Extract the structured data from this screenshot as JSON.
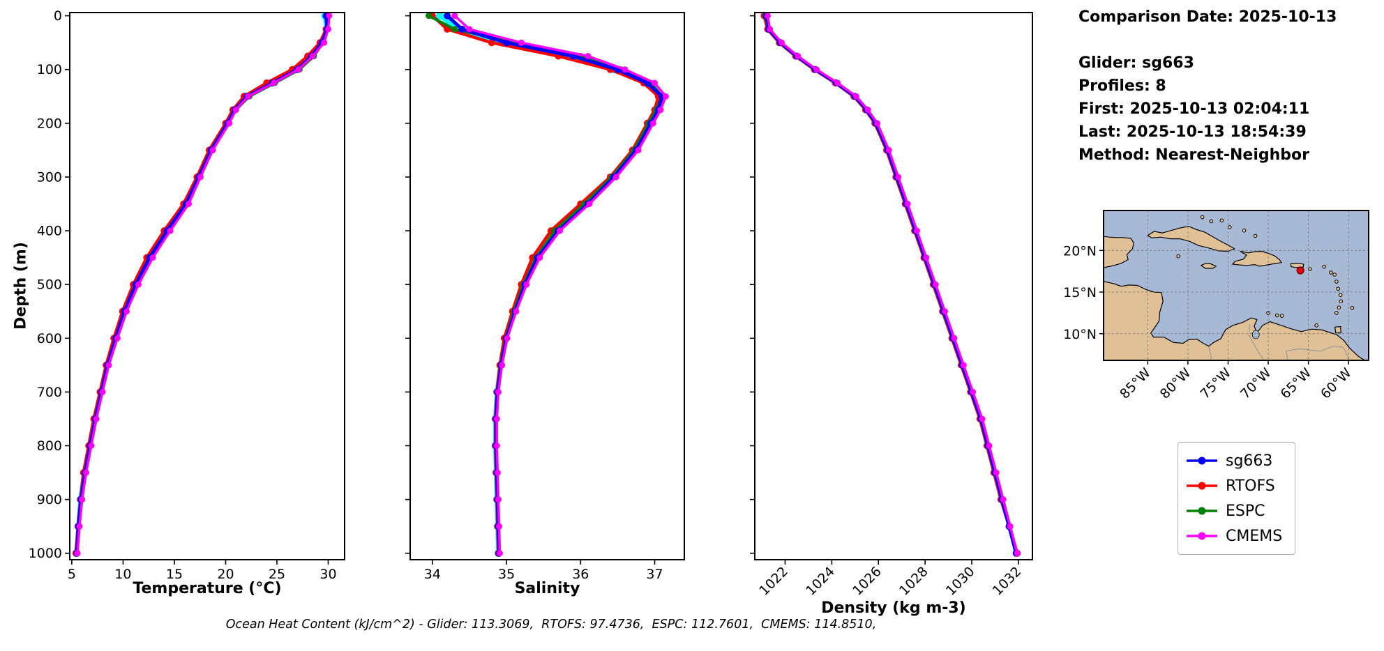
{
  "depth_axis_label": "Depth (m)",
  "info": {
    "title": "Comparison Date: 2025-10-13",
    "lines": [
      "Glider: sg663",
      "Profiles: 8",
      "First: 2025-10-13 02:04:11",
      "Last: 2025-10-13 18:54:39",
      "Method: Nearest-Neighbor"
    ]
  },
  "caption": "Ocean Heat Content (kJ/cm^2) - Glider: 113.3069,  RTOFS: 97.4736,  ESPC: 112.7601,  CMEMS: 114.8510,",
  "ocean_heat_content": {
    "glider": 113.3069,
    "rtofs": 97.4736,
    "espc": 112.7601,
    "cmems": 114.851
  },
  "legend": {
    "position": "lower-right",
    "entries": [
      {
        "label": "sg663",
        "color": "#0000ff"
      },
      {
        "label": "RTOFS",
        "color": "#ff0000"
      },
      {
        "label": "ESPC",
        "color": "#008000"
      },
      {
        "label": "CMEMS",
        "color": "#ff00ff"
      }
    ]
  },
  "map": {
    "ocean_color": "#a7b9d5",
    "land_color": "#e0c096",
    "marker": {
      "lon": -66.0,
      "lat": 17.6,
      "color": "#e8000b"
    },
    "lat_ticks": [
      "20°N",
      "15°N",
      "10°N"
    ],
    "lat_tick_values": [
      20,
      15,
      10
    ],
    "lon_ticks": [
      "85°W",
      "80°W",
      "75°W",
      "70°W",
      "65°W",
      "60°W"
    ],
    "lon_tick_values": [
      -85,
      -80,
      -75,
      -70,
      -65,
      -60
    ]
  },
  "chart_data": [
    {
      "name": "temperature",
      "type": "line",
      "xlabel": "Temperature (°C)",
      "ylabel": "Depth (m)",
      "xlim": [
        4.8,
        31.6
      ],
      "ylim": [
        0,
        1000
      ],
      "y_inverted": true,
      "grid": false,
      "xticks": [
        5,
        10,
        15,
        20,
        25,
        30
      ],
      "yticks": [
        0,
        100,
        200,
        300,
        400,
        500,
        600,
        700,
        800,
        900,
        1000
      ],
      "xtick_rotation": 0,
      "show_ytick_labels": true,
      "depths": [
        0,
        25,
        50,
        75,
        100,
        125,
        150,
        175,
        200,
        250,
        300,
        350,
        400,
        450,
        500,
        550,
        600,
        650,
        700,
        750,
        800,
        850,
        900,
        950,
        1000
      ],
      "series": [
        {
          "name": "profiles",
          "color": "#00ffff",
          "lw": 6.5,
          "ms": 5.5,
          "values": [
            29.7,
            29.85,
            29.3,
            28.2,
            26.8,
            24.4,
            21.9,
            20.8,
            20.1,
            18.5,
            17.3,
            16.0,
            14.1,
            12.4,
            11.1,
            10.0,
            9.2,
            8.4,
            7.8,
            7.2,
            6.7,
            6.2,
            5.85,
            5.65,
            5.45
          ]
        },
        {
          "name": "RTOFS",
          "color": "#ff0000",
          "lw": 4.5,
          "ms": 5,
          "values": [
            30.0,
            29.8,
            29.2,
            28.0,
            26.5,
            24.0,
            21.8,
            20.7,
            20.0,
            18.4,
            17.2,
            15.9,
            14.0,
            12.3,
            11.0,
            9.95,
            9.1,
            8.35,
            7.75,
            7.15,
            6.65,
            6.15,
            5.85,
            5.6,
            5.4
          ]
        },
        {
          "name": "ESPC",
          "color": "#008000",
          "lw": 4,
          "ms": 4.5,
          "values": [
            29.9,
            29.9,
            29.5,
            28.6,
            27.2,
            24.8,
            22.3,
            21.0,
            20.3,
            18.7,
            17.5,
            16.3,
            14.5,
            12.75,
            11.4,
            10.3,
            9.4,
            8.6,
            7.95,
            7.35,
            6.85,
            6.35,
            6.0,
            5.7,
            5.5
          ]
        },
        {
          "name": "sg663",
          "color": "#0000ff",
          "lw": 5,
          "ms": 5,
          "values": [
            29.8,
            29.9,
            29.4,
            28.4,
            27.0,
            24.6,
            22.1,
            20.9,
            20.2,
            18.6,
            17.4,
            16.15,
            14.3,
            12.6,
            11.25,
            10.15,
            9.3,
            8.5,
            7.9,
            7.3,
            6.8,
            6.3,
            5.9,
            5.65,
            5.5
          ]
        },
        {
          "name": "CMEMS",
          "color": "#ff00ff",
          "lw": 3.5,
          "ms": 4.5,
          "values": [
            30.1,
            30.0,
            29.6,
            28.5,
            27.1,
            24.7,
            22.2,
            21.0,
            20.35,
            18.75,
            17.55,
            16.4,
            14.6,
            12.9,
            11.5,
            10.35,
            9.45,
            8.6,
            8.0,
            7.4,
            6.9,
            6.4,
            6.0,
            5.75,
            5.55
          ]
        }
      ]
    },
    {
      "name": "salinity",
      "type": "line",
      "xlabel": "Salinity",
      "ylabel": "Depth (m)",
      "xlim": [
        33.7,
        37.4
      ],
      "ylim": [
        0,
        1000
      ],
      "y_inverted": true,
      "grid": false,
      "xticks": [
        34,
        35,
        36,
        37
      ],
      "yticks": [
        0,
        100,
        200,
        300,
        400,
        500,
        600,
        700,
        800,
        900,
        1000
      ],
      "xtick_rotation": 0,
      "show_ytick_labels": false,
      "depths": [
        0,
        25,
        50,
        75,
        100,
        125,
        150,
        175,
        200,
        250,
        300,
        350,
        400,
        450,
        500,
        550,
        600,
        650,
        700,
        750,
        800,
        850,
        900,
        950,
        1000
      ],
      "series": [
        {
          "name": "profiles",
          "color": "#00ffff",
          "lw": 6.5,
          "ms": 5.5,
          "values": [
            34.1,
            34.35,
            34.95,
            35.85,
            36.45,
            36.88,
            37.08,
            37.03,
            36.93,
            36.73,
            36.43,
            36.08,
            35.68,
            35.4,
            35.24,
            35.11,
            34.99,
            34.92,
            34.87,
            34.85,
            34.85,
            34.86,
            34.87,
            34.88,
            34.89
          ]
        },
        {
          "name": "RTOFS",
          "color": "#ff0000",
          "lw": 4.5,
          "ms": 5,
          "values": [
            34.0,
            34.2,
            34.8,
            35.7,
            36.4,
            36.85,
            37.05,
            37.0,
            36.9,
            36.7,
            36.4,
            36.0,
            35.6,
            35.35,
            35.2,
            35.08,
            34.97,
            34.91,
            34.87,
            34.85,
            34.85,
            34.86,
            34.87,
            34.88,
            34.89
          ]
        },
        {
          "name": "ESPC",
          "color": "#008000",
          "lw": 4,
          "ms": 4.5,
          "values": [
            33.95,
            34.3,
            35.1,
            36.0,
            36.55,
            36.95,
            37.1,
            37.02,
            36.92,
            36.72,
            36.42,
            36.05,
            35.65,
            35.4,
            35.23,
            35.1,
            34.99,
            34.92,
            34.88,
            34.86,
            34.86,
            34.87,
            34.88,
            34.89,
            34.9
          ]
        },
        {
          "name": "sg663",
          "color": "#0000ff",
          "lw": 5,
          "ms": 5,
          "values": [
            34.2,
            34.4,
            35.0,
            35.9,
            36.5,
            36.9,
            37.1,
            37.05,
            36.95,
            36.75,
            36.45,
            36.1,
            35.7,
            35.42,
            35.25,
            35.12,
            35.0,
            34.93,
            34.88,
            34.86,
            34.86,
            34.87,
            34.88,
            34.89,
            34.9
          ]
        },
        {
          "name": "CMEMS",
          "color": "#ff00ff",
          "lw": 3.5,
          "ms": 4.5,
          "values": [
            34.3,
            34.5,
            35.2,
            36.1,
            36.6,
            37.0,
            37.15,
            37.08,
            36.98,
            36.78,
            36.48,
            36.12,
            35.72,
            35.45,
            35.27,
            35.13,
            35.01,
            34.94,
            34.89,
            34.87,
            34.87,
            34.88,
            34.89,
            34.9,
            34.91
          ]
        }
      ]
    },
    {
      "name": "density",
      "type": "line",
      "xlabel": "Density (kg m-3)",
      "ylabel": "Depth (m)",
      "xlim": [
        1020.7,
        1032.6
      ],
      "ylim": [
        0,
        1000
      ],
      "y_inverted": true,
      "grid": false,
      "xticks": [
        1022,
        1024,
        1026,
        1028,
        1030,
        1032
      ],
      "yticks": [
        0,
        100,
        200,
        300,
        400,
        500,
        600,
        700,
        800,
        900,
        1000
      ],
      "xtick_rotation": 45,
      "show_ytick_labels": false,
      "depths": [
        0,
        25,
        50,
        75,
        100,
        125,
        150,
        175,
        200,
        250,
        300,
        350,
        400,
        450,
        500,
        550,
        600,
        650,
        700,
        750,
        800,
        850,
        900,
        950,
        1000
      ],
      "series": [
        {
          "name": "RTOFS",
          "color": "#ff0000",
          "lw": 4.5,
          "ms": 5,
          "values": [
            1021.1,
            1021.25,
            1021.75,
            1022.45,
            1023.25,
            1024.15,
            1024.95,
            1025.45,
            1025.85,
            1026.35,
            1026.75,
            1027.15,
            1027.55,
            1027.95,
            1028.35,
            1028.75,
            1029.15,
            1029.55,
            1029.95,
            1030.35,
            1030.65,
            1030.95,
            1031.25,
            1031.6,
            1031.95
          ]
        },
        {
          "name": "ESPC",
          "color": "#008000",
          "lw": 4,
          "ms": 4.5,
          "values": [
            1021.15,
            1021.28,
            1021.78,
            1022.48,
            1023.28,
            1024.18,
            1024.98,
            1025.48,
            1025.88,
            1026.38,
            1026.78,
            1027.18,
            1027.58,
            1027.98,
            1028.38,
            1028.78,
            1029.18,
            1029.58,
            1029.98,
            1030.38,
            1030.68,
            1030.98,
            1031.28,
            1031.62,
            1031.95
          ]
        },
        {
          "name": "sg663",
          "color": "#0000ff",
          "lw": 5,
          "ms": 5,
          "values": [
            1021.2,
            1021.3,
            1021.8,
            1022.5,
            1023.3,
            1024.2,
            1025.0,
            1025.5,
            1025.9,
            1026.4,
            1026.8,
            1027.2,
            1027.6,
            1028.0,
            1028.4,
            1028.8,
            1029.2,
            1029.6,
            1030.0,
            1030.4,
            1030.7,
            1031.0,
            1031.3,
            1031.6,
            1031.9
          ]
        },
        {
          "name": "CMEMS",
          "color": "#ff00ff",
          "lw": 3.5,
          "ms": 4.5,
          "values": [
            1021.25,
            1021.35,
            1021.85,
            1022.55,
            1023.35,
            1024.25,
            1025.05,
            1025.55,
            1025.95,
            1026.45,
            1026.85,
            1027.25,
            1027.65,
            1028.05,
            1028.45,
            1028.85,
            1029.25,
            1029.65,
            1030.05,
            1030.45,
            1030.75,
            1031.05,
            1031.35,
            1031.65,
            1031.95
          ]
        }
      ]
    }
  ]
}
